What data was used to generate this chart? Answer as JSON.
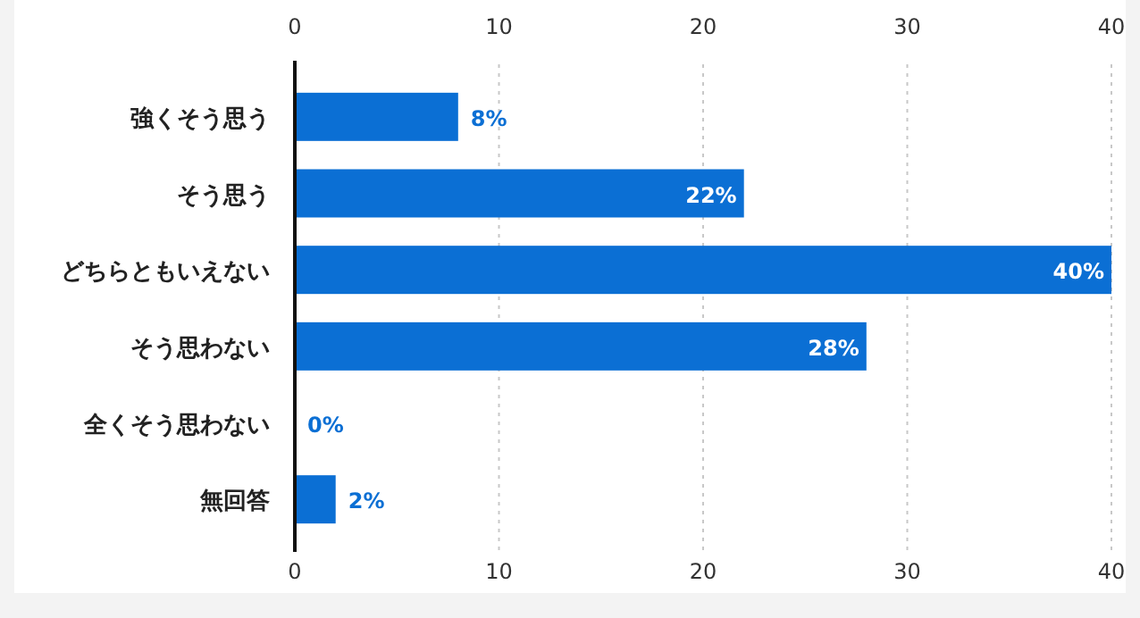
{
  "chart_data": {
    "type": "bar",
    "orientation": "horizontal",
    "categories": [
      "強くそう思う",
      "そう思う",
      "どちらともいえない",
      "そう思わない",
      "全くそう思わない",
      "無回答"
    ],
    "values": [
      8,
      22,
      40,
      28,
      0,
      2
    ],
    "value_labels": [
      "8%",
      "22%",
      "40%",
      "28%",
      "0%",
      "2%"
    ],
    "color": "#0b6fd4",
    "xlim": [
      0,
      40
    ],
    "xticks": [
      0,
      10,
      20,
      30,
      40
    ],
    "x2lim": [
      0,
      40
    ],
    "x2ticks": [
      0,
      10,
      20,
      30,
      40
    ],
    "grid": "x"
  }
}
